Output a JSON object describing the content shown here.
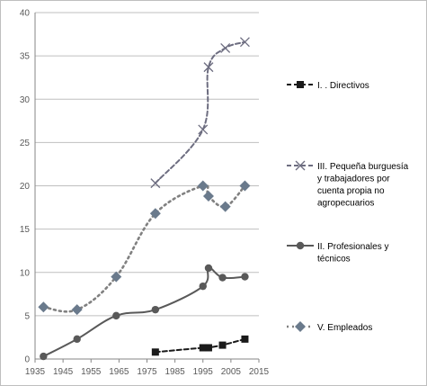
{
  "chart_data": {
    "type": "line",
    "title": "",
    "xlabel": "",
    "ylabel": "",
    "xlim": [
      1935,
      2015
    ],
    "ylim": [
      0,
      40
    ],
    "x_ticks": [
      1935,
      1945,
      1955,
      1965,
      1975,
      1985,
      1995,
      2005,
      2015
    ],
    "y_ticks": [
      0,
      5,
      10,
      15,
      20,
      25,
      30,
      35,
      40
    ],
    "x_tick_labels": [
      "1935",
      "1945",
      "1955",
      "1965",
      "1975",
      "1985",
      "1995",
      "2005",
      "2015"
    ],
    "y_tick_labels": [
      "0",
      "5",
      "10",
      "15",
      "20",
      "25",
      "30",
      "35",
      "40"
    ],
    "grid": "horizontal",
    "legend_position": "right",
    "series": [
      {
        "name": "I. . Directivos",
        "color": "#1a1a1a",
        "line_style": "dashed",
        "marker": "square",
        "smooth": false,
        "points": [
          [
            1978,
            0.8
          ],
          [
            1995,
            1.3
          ],
          [
            1997,
            1.3
          ],
          [
            2002,
            1.6
          ],
          [
            2010,
            2.3
          ]
        ],
        "legend_lines": [
          "I. . Directivos"
        ]
      },
      {
        "name": "III. Pequeña burguesía y trabajadores por cuenta  propia no agropecuarios",
        "color": "#6d6d80",
        "line_style": "dashed",
        "marker": "x",
        "smooth": true,
        "points": [
          [
            1978,
            20.3
          ],
          [
            1995,
            26.5
          ],
          [
            1997,
            33.7
          ],
          [
            2003,
            35.9
          ],
          [
            2010,
            36.6
          ]
        ],
        "legend_lines": [
          "III. Pequeña burguesía",
          "y trabajadores por",
          "cuenta  propia no",
          "agropecuarios"
        ]
      },
      {
        "name": "II. Profesionales y técnicos",
        "color": "#595959",
        "line_style": "solid",
        "marker": "circle",
        "smooth": true,
        "points": [
          [
            1938,
            0.3
          ],
          [
            1950,
            2.3
          ],
          [
            1964,
            5.0
          ],
          [
            1978,
            5.7
          ],
          [
            1995,
            8.4
          ],
          [
            1997,
            10.5
          ],
          [
            2002,
            9.4
          ],
          [
            2010,
            9.5
          ]
        ],
        "legend_lines": [
          "II. Profesionales y",
          "técnicos"
        ]
      },
      {
        "name": "V. Empleados",
        "color": "#808080",
        "marker_color": "#6a7a8c",
        "line_style": "dotted",
        "marker": "diamond",
        "smooth": true,
        "points": [
          [
            1938,
            6.0
          ],
          [
            1950,
            5.7
          ],
          [
            1964,
            9.5
          ],
          [
            1978,
            16.8
          ],
          [
            1995,
            20.0
          ],
          [
            1997,
            18.8
          ],
          [
            2003,
            17.6
          ],
          [
            2010,
            20.0
          ]
        ],
        "legend_lines": [
          "V. Empleados"
        ]
      }
    ]
  }
}
